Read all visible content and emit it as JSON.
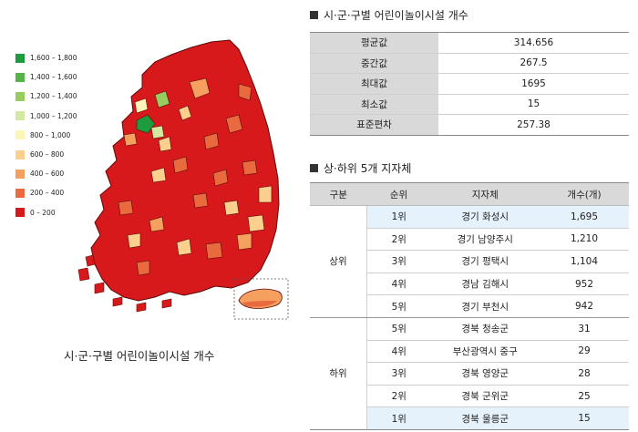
{
  "legend": [
    {
      "label": "1,600 – 1,800",
      "color": "#1e9b3f"
    },
    {
      "label": "1,400 – 1,600",
      "color": "#55b34a"
    },
    {
      "label": "1,200 – 1,400",
      "color": "#97cc5e"
    },
    {
      "label": "1,000 – 1,200",
      "color": "#d3e9a1"
    },
    {
      "label": "800 – 1,000",
      "color": "#fdf5b8"
    },
    {
      "label": "600 – 800",
      "color": "#fbd08f"
    },
    {
      "label": "400 – 600",
      "color": "#f6a060"
    },
    {
      "label": "200 – 400",
      "color": "#e86a3e"
    },
    {
      "label": "0 – 200",
      "color": "#d7191c"
    }
  ],
  "map_caption": "시·군·구별 어린이놀이시설 개수",
  "stats": {
    "title": "시·군·구별 어린이놀이시설 개수",
    "rows": [
      {
        "label": "평균값",
        "value": "314.656"
      },
      {
        "label": "중간값",
        "value": "267.5"
      },
      {
        "label": "최대값",
        "value": "1695"
      },
      {
        "label": "최소값",
        "value": "15"
      },
      {
        "label": "표준편차",
        "value": "257.38"
      }
    ]
  },
  "ranking": {
    "title": "상·하위 5개 지자체",
    "headers": {
      "group": "구분",
      "rank": "순위",
      "region": "지자체",
      "count": "개수(개)"
    },
    "top_label": "상위",
    "bottom_label": "하위",
    "top": [
      {
        "rank": "1위",
        "region": "경기 화성시",
        "count": "1,695"
      },
      {
        "rank": "2위",
        "region": "경기 남양주시",
        "count": "1,210"
      },
      {
        "rank": "3위",
        "region": "경기 평택시",
        "count": "1,104"
      },
      {
        "rank": "4위",
        "region": "경남 김해시",
        "count": "952"
      },
      {
        "rank": "5위",
        "region": "경기 부천시",
        "count": "942"
      }
    ],
    "bottom": [
      {
        "rank": "5위",
        "region": "경북 청송군",
        "count": "31"
      },
      {
        "rank": "4위",
        "region": "부산광역시 중구",
        "count": "29"
      },
      {
        "rank": "3위",
        "region": "경북 영양군",
        "count": "28"
      },
      {
        "rank": "2위",
        "region": "경북 군위군",
        "count": "25"
      },
      {
        "rank": "1위",
        "region": "경북 울릉군",
        "count": "15"
      }
    ]
  }
}
